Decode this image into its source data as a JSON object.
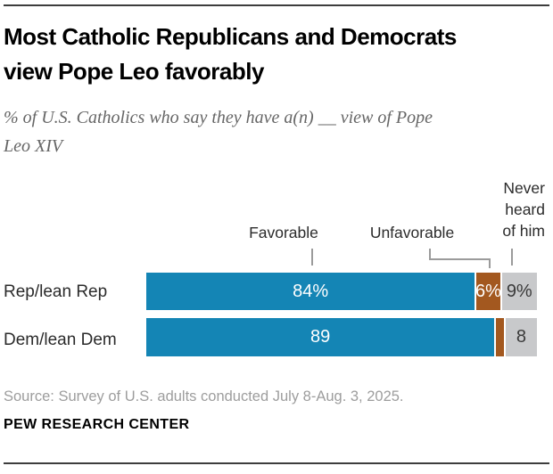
{
  "header": {
    "title": "Most Catholic Republicans and Democrats view Pope Leo favorably",
    "subtitle": "% of U.S. Catholics who say they have a(n) __ view of Pope Leo XIV"
  },
  "chart_data": {
    "type": "bar",
    "variant": "horizontal-stacked",
    "xlim": [
      0,
      100
    ],
    "grid": false,
    "categories": [
      "Rep/lean Rep",
      "Dem/lean Dem"
    ],
    "series": [
      {
        "name": "Favorable",
        "color": "#1485b5",
        "label_color": "#ffffff",
        "values": [
          84,
          89
        ],
        "labels": [
          "84%",
          "89"
        ]
      },
      {
        "name": "Unfavorable",
        "color": "#a3581f",
        "label_color": "#ffffff",
        "values": [
          6,
          2
        ],
        "labels": [
          "6%",
          ""
        ]
      },
      {
        "name": "Never heard of him",
        "color": "#c8c9cb",
        "label_color": "#3a3a3a",
        "values": [
          9,
          8
        ],
        "labels": [
          "9%",
          "8"
        ]
      }
    ]
  },
  "footer": {
    "source": "Source: Survey of U.S. adults conducted July 8-Aug. 3, 2025.",
    "brand": "PEW RESEARCH CENTER"
  },
  "colors": {
    "rule": "#3d3d3d",
    "connector": "#9b9b9b",
    "subtitle_text": "#666666",
    "source_text": "#9d9d9d"
  }
}
